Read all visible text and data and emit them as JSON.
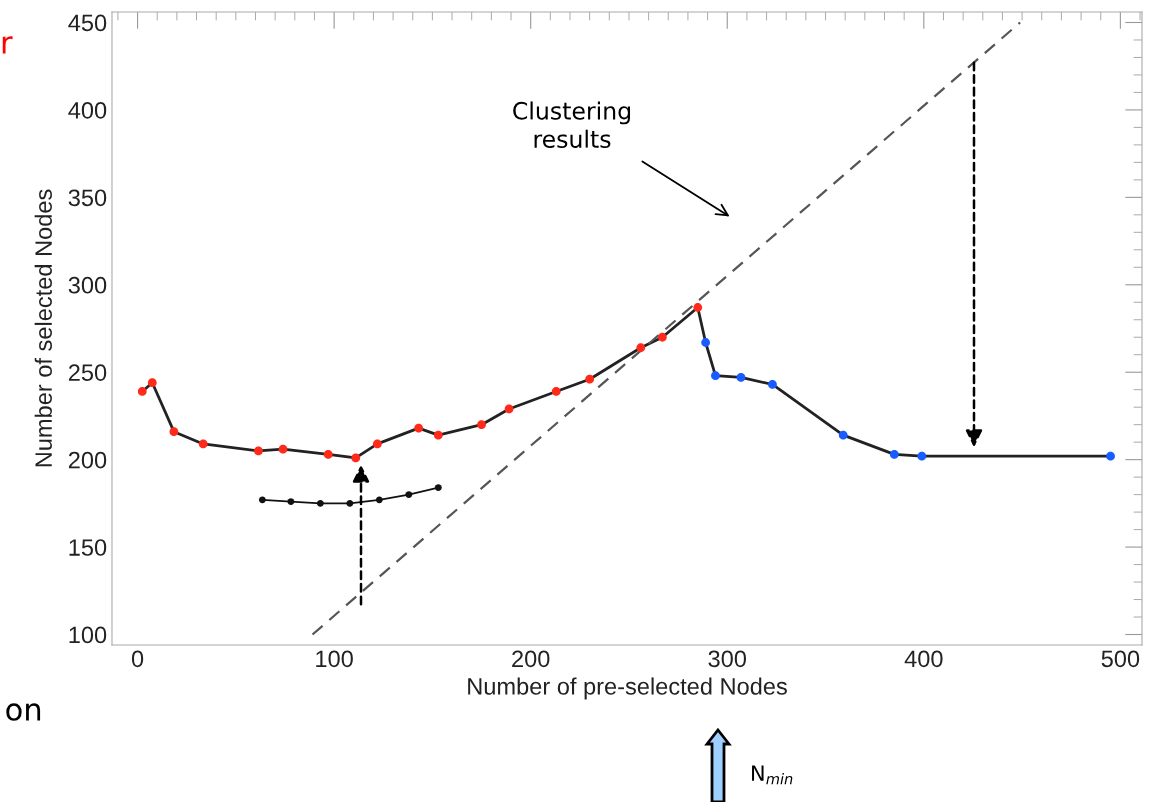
{
  "chart_data": {
    "type": "line",
    "xlabel": "Number of pre-selected Nodes",
    "ylabel": "Number of selected Nodes",
    "xlim": [
      -13,
      511
    ],
    "ylim": [
      94,
      456
    ],
    "xticks": [
      0,
      100,
      200,
      300,
      400,
      500
    ],
    "yticks": [
      100,
      150,
      200,
      250,
      300,
      350,
      400,
      450
    ],
    "grid": false,
    "legend": false,
    "series": [
      {
        "color": "#222222",
        "marker": "none",
        "line_style": "solid",
        "x": [
          2.4,
          7.5,
          18.5,
          33.4,
          61.5,
          74,
          97,
          111,
          122,
          143,
          153,
          175,
          189,
          213,
          230,
          256,
          267,
          285,
          289,
          294,
          307,
          323,
          359,
          385,
          399,
          495
        ],
        "values": [
          239,
          244,
          216,
          209,
          205,
          206,
          203,
          201,
          209,
          218,
          214,
          220,
          229,
          239,
          246,
          264,
          270,
          287,
          267,
          248,
          247,
          243,
          214,
          203,
          202,
          202
        ]
      },
      {
        "type": "scatter",
        "color": "#ff2a1a",
        "marker": "circle",
        "x": [
          2.4,
          7.5,
          18.5,
          33.4,
          61.5,
          74,
          97,
          111,
          122,
          143,
          153,
          175,
          189,
          213,
          230,
          256,
          267,
          285
        ],
        "values": [
          239,
          244,
          216,
          209,
          205,
          206,
          203,
          201,
          209,
          218,
          214,
          220,
          229,
          239,
          246,
          264,
          270,
          287
        ]
      },
      {
        "type": "scatter",
        "color": "#1a5cff",
        "marker": "circle",
        "x": [
          289,
          294,
          307,
          323,
          359,
          385,
          399,
          495
        ],
        "values": [
          267,
          248,
          247,
          243,
          214,
          203,
          202,
          202
        ]
      },
      {
        "color": "#111111",
        "marker": "circle",
        "line_style": "solid",
        "x": [
          63.5,
          78,
          93,
          108,
          123,
          138,
          153
        ],
        "values": [
          177,
          176,
          175,
          175,
          177,
          180,
          184
        ]
      },
      {
        "color": "#555555",
        "marker": "none",
        "line_style": "dashed",
        "x": [
          89,
          449
        ],
        "values": [
          100,
          450
        ]
      }
    ],
    "annotations": [
      "Clustering\nresults",
      "N$_{min}$",
      "r",
      "on"
    ]
  }
}
